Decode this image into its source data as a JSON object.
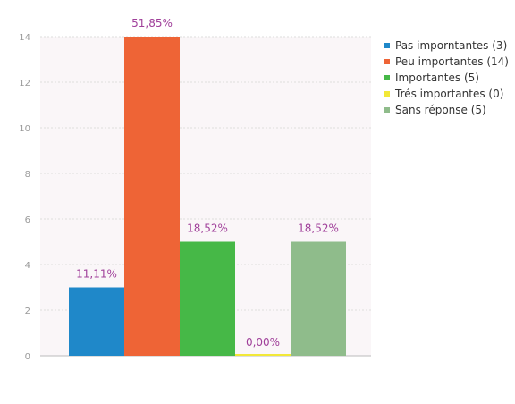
{
  "chart_data": {
    "type": "bar",
    "categories": [
      "Pas imporntantes",
      "Peu importantes",
      "Importantes",
      "Trés importantes",
      "Sans réponse"
    ],
    "values": [
      3,
      14,
      5,
      0,
      5
    ],
    "data_labels": [
      "11,11%",
      "51,85%",
      "18,52%",
      "0,00%",
      "18,52%"
    ],
    "colors": [
      "#1f88c9",
      "#ee6436",
      "#46b847",
      "#f2e838",
      "#8fbc8b"
    ],
    "legend": [
      {
        "label": "Pas imporntantes (3)",
        "color": "#1f88c9"
      },
      {
        "label": "Peu importantes (14)",
        "color": "#ee6436"
      },
      {
        "label": "Importantes (5)",
        "color": "#46b847"
      },
      {
        "label": "Trés importantes (0)",
        "color": "#f2e838"
      },
      {
        "label": "Sans réponse (5)",
        "color": "#8fbc8b"
      }
    ],
    "legend_position": "top-right",
    "yticks": [
      "0",
      "2",
      "4",
      "6",
      "8",
      "10",
      "12",
      "14"
    ],
    "ylim": [
      0,
      14
    ],
    "grid": true,
    "plot_background": "#faf6f8",
    "label_color": "#a0409a"
  }
}
